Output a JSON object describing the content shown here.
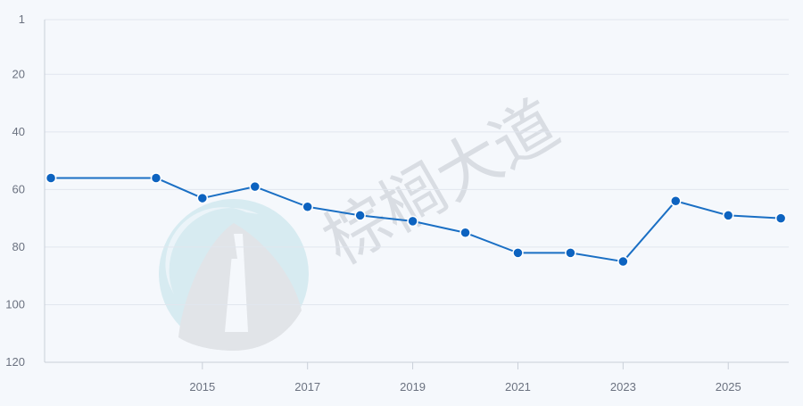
{
  "chart_data": {
    "type": "line",
    "title": "",
    "xlabel": "",
    "ylabel": "",
    "x_ticks": [
      "2015",
      "2017",
      "2019",
      "2021",
      "2023",
      "2025"
    ],
    "y_ticks": [
      "1",
      "20",
      "40",
      "60",
      "80",
      "100",
      "120"
    ],
    "ylim": [
      1,
      120
    ],
    "y_inverted": true,
    "xlim": [
      2012,
      2026.15
    ],
    "grid": "horizontal",
    "legend": "none",
    "series": [
      {
        "x": [
          2012.12,
          2014.12,
          2015,
          2016,
          2017,
          2018,
          2019,
          2020,
          2021,
          2022,
          2023,
          2024,
          2025,
          2026
        ],
        "values": [
          56,
          56,
          63,
          59,
          66,
          69,
          71,
          75,
          82,
          82,
          85,
          64,
          69,
          70
        ]
      }
    ]
  },
  "watermark": {
    "text": "棕榈大道"
  },
  "colors": {
    "line": "#1a6fc4",
    "marker": "#0d63c0",
    "grid": "#e1e6ee",
    "axis": "#c9cfd8",
    "background": "#f5f8fc",
    "watermark": "#d9dde3",
    "logo_teal": "#cfe8ee",
    "logo_gray": "#dfe2e6"
  },
  "icons": {
    "watermark_logo": "road-logo-icon"
  }
}
